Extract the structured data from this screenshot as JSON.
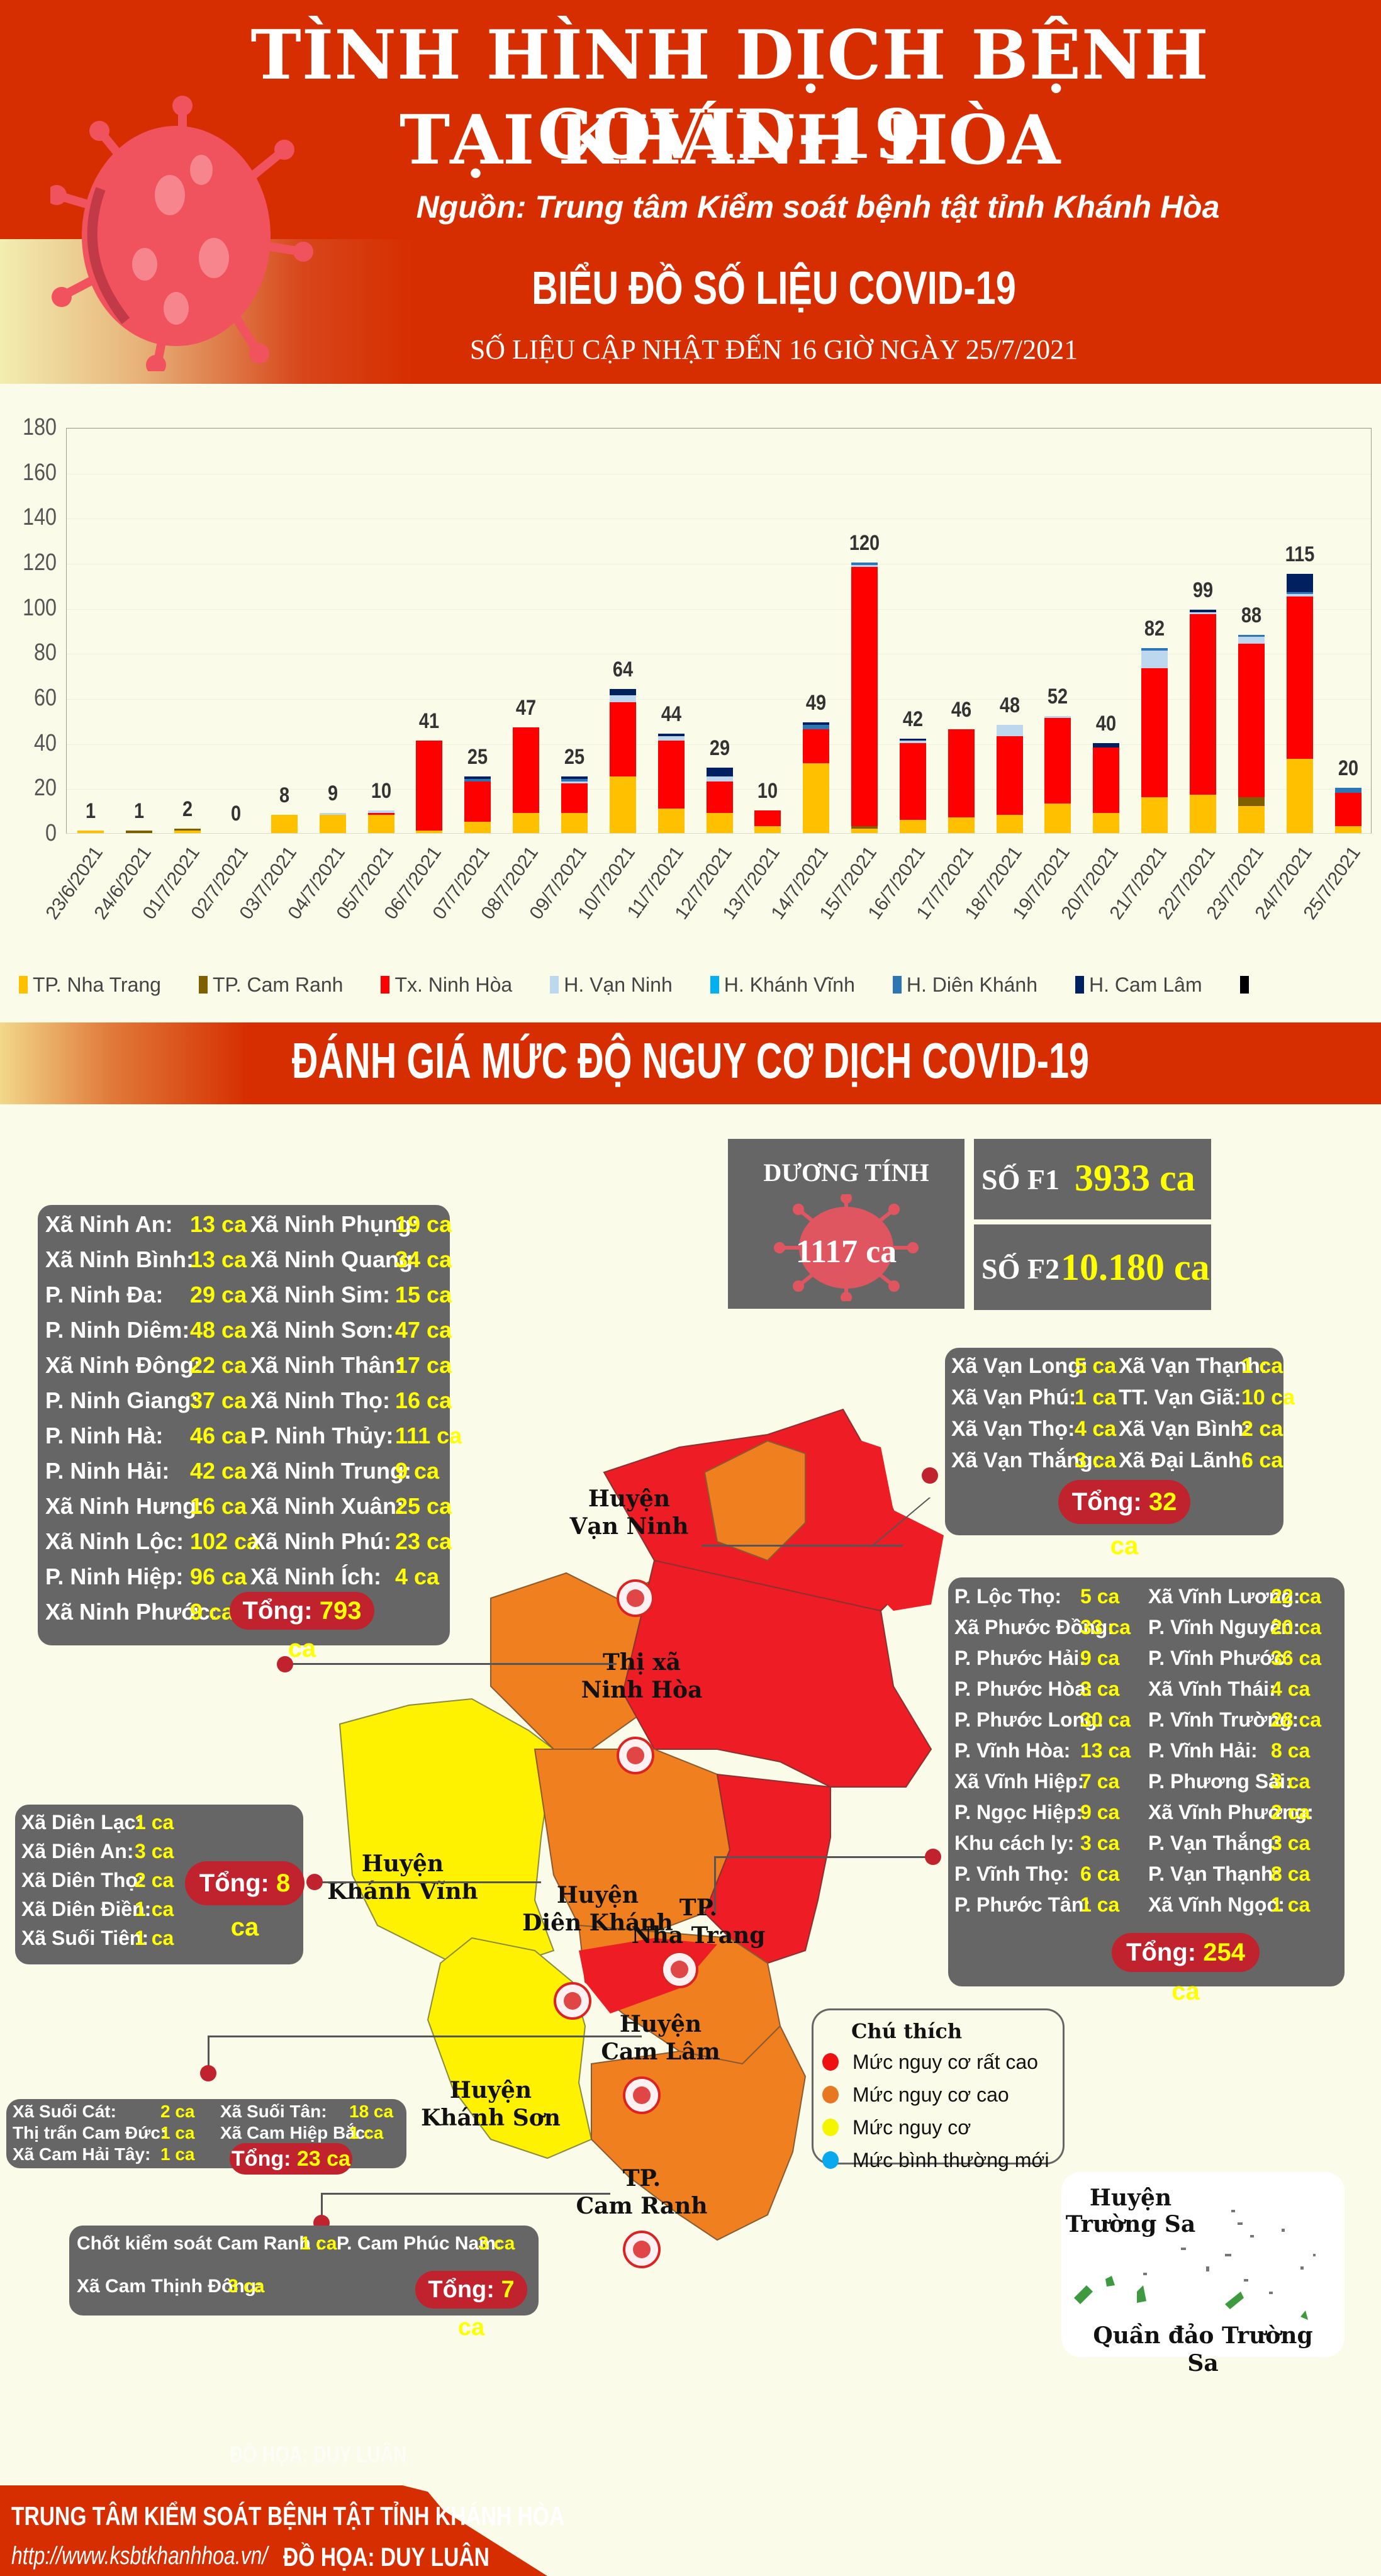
{
  "header": {
    "title_line1": "TÌNH HÌNH DỊCH BỆNH COVID-19",
    "title_line2": "TẠI KHÁNH HÒA",
    "source": "Nguồn: Trung tâm Kiểm soát bệnh tật tỉnh Khánh Hòa",
    "chart_title": "BIỂU ĐỒ SỐ LIỆU COVID-19",
    "update_note": "SỐ LIỆU CẬP NHẬT ĐẾN 16 GIỜ NGÀY 25/7/2021"
  },
  "colors": {
    "accent_red": "#d62e00",
    "box_gray": "#666666",
    "value_yellow": "#ffff00",
    "pill_red": "#c0232d"
  },
  "chart_data": {
    "type": "bar",
    "stacked": true,
    "title": "BIỂU ĐỒ SỐ LIỆU COVID-19",
    "xlabel": "",
    "ylabel": "",
    "ylim": [
      0,
      180
    ],
    "yticks": [
      0,
      20,
      40,
      60,
      80,
      100,
      120,
      140,
      160,
      180
    ],
    "grid": true,
    "legend_position": "bottom",
    "categories": [
      "23/6/2021",
      "24/6/2021",
      "01/7/2021",
      "02/7/2021",
      "03/7/2021",
      "04/7/2021",
      "05/7/2021",
      "06/7/2021",
      "07/7/2021",
      "08/7/2021",
      "09/7/2021",
      "10/7/2021",
      "11/7/2021",
      "12/7/2021",
      "13/7/2021",
      "14/7/2021",
      "15/7/2021",
      "16/7/2021",
      "17/7/2021",
      "18/7/2021",
      "19/7/2021",
      "20/7/2021",
      "21/7/2021",
      "22/7/2021",
      "23/7/2021",
      "24/7/2021",
      "25/7/2021"
    ],
    "totals": [
      1,
      1,
      2,
      0,
      8,
      9,
      10,
      41,
      25,
      47,
      25,
      64,
      44,
      29,
      10,
      49,
      120,
      42,
      46,
      48,
      52,
      40,
      82,
      99,
      88,
      115,
      20
    ],
    "series": [
      {
        "name": "TP. Nha Trang",
        "color": "#ffc000",
        "values": [
          1,
          0,
          1,
          0,
          8,
          8,
          8,
          1,
          5,
          9,
          9,
          25,
          11,
          9,
          3,
          31,
          2,
          6,
          7,
          8,
          13,
          9,
          16,
          17,
          12,
          33,
          3
        ]
      },
      {
        "name": "TP. Cam Ranh",
        "color": "#7f6000",
        "values": [
          0,
          1,
          1,
          0,
          0,
          0,
          0,
          0,
          0,
          0,
          0,
          0,
          0,
          0,
          0,
          0,
          1,
          0,
          0,
          0,
          0,
          0,
          0,
          0,
          4,
          0,
          0
        ]
      },
      {
        "name": "Tx. Ninh Hòa",
        "color": "#ff0000",
        "values": [
          0,
          0,
          0,
          0,
          0,
          0,
          1,
          40,
          18,
          38,
          13,
          33,
          30,
          14,
          7,
          15,
          115,
          34,
          39,
          35,
          38,
          29,
          57,
          80,
          68,
          72,
          15
        ]
      },
      {
        "name": "H. Vạn Ninh",
        "color": "#bdd7ee",
        "values": [
          0,
          0,
          0,
          0,
          0,
          1,
          1,
          0,
          0,
          0,
          1,
          3,
          2,
          2,
          0,
          0,
          1,
          1,
          0,
          5,
          1,
          0,
          8,
          1,
          3,
          1,
          0
        ]
      },
      {
        "name": "H. Khánh Vĩnh",
        "color": "#00b0f0",
        "values": [
          0,
          0,
          0,
          0,
          0,
          0,
          0,
          0,
          0,
          0,
          0,
          0,
          0,
          0,
          0,
          0,
          0,
          0,
          0,
          0,
          0,
          0,
          0,
          0,
          0,
          0,
          0
        ]
      },
      {
        "name": "H. Diên Khánh",
        "color": "#2e75b6",
        "values": [
          0,
          0,
          0,
          0,
          0,
          0,
          0,
          0,
          1,
          0,
          1,
          0,
          0,
          0,
          0,
          2,
          1,
          0,
          0,
          0,
          0,
          0,
          1,
          0,
          1,
          1,
          2
        ]
      },
      {
        "name": "H. Cam Lâm",
        "color": "#002060",
        "values": [
          0,
          0,
          0,
          0,
          0,
          0,
          0,
          0,
          1,
          0,
          1,
          3,
          1,
          4,
          0,
          1,
          0,
          1,
          0,
          0,
          0,
          2,
          0,
          1,
          0,
          8,
          0
        ]
      },
      {
        "name": "",
        "color": "#000000",
        "values": [
          0,
          0,
          0,
          0,
          0,
          0,
          0,
          0,
          0,
          0,
          0,
          0,
          0,
          0,
          0,
          0,
          0,
          0,
          0,
          0,
          0,
          0,
          0,
          0,
          0,
          0,
          0
        ]
      }
    ]
  },
  "section2": {
    "title": "ĐÁNH GIÁ MỨC ĐỘ NGUY CƠ DỊCH COVID-19",
    "positive": {
      "label": "DƯƠNG TÍNH",
      "value": "1117 ca"
    },
    "f1": {
      "label": "SỐ F1",
      "value": "3933 ca"
    },
    "f2": {
      "label": "SỐ F2",
      "value": "10.180 ca"
    }
  },
  "districts": {
    "ninh_hoa": {
      "left": [
        {
          "name": "Xã Ninh An:",
          "value": "13 ca"
        },
        {
          "name": "Xã Ninh Bình:",
          "value": "13 ca"
        },
        {
          "name": "P. Ninh Đa:",
          "value": "29 ca"
        },
        {
          "name": "P. Ninh Diêm:",
          "value": "48 ca"
        },
        {
          "name": "Xã Ninh Đông:",
          "value": "22 ca"
        },
        {
          "name": "P. Ninh Giang:",
          "value": "37 ca"
        },
        {
          "name": "P. Ninh Hà:",
          "value": "46 ca"
        },
        {
          "name": "P. Ninh Hải:",
          "value": "42 ca"
        },
        {
          "name": "Xã Ninh Hưng:",
          "value": "16 ca"
        },
        {
          "name": "Xã Ninh Lộc:",
          "value": "102 ca"
        },
        {
          "name": "P. Ninh Hiệp:",
          "value": "96 ca"
        },
        {
          "name": "Xã Ninh Phước:",
          "value": "9 ca"
        }
      ],
      "right": [
        {
          "name": "Xã Ninh Phụng:",
          "value": "19 ca"
        },
        {
          "name": "Xã Ninh Quang:",
          "value": "34 ca"
        },
        {
          "name": "Xã Ninh Sim:",
          "value": "15 ca"
        },
        {
          "name": "Xã Ninh Sơn:",
          "value": "47 ca"
        },
        {
          "name": "Xã Ninh Thân:",
          "value": "17 ca"
        },
        {
          "name": "Xã Ninh Thọ:",
          "value": "16 ca"
        },
        {
          "name": "P. Ninh Thủy:",
          "value": "111 ca"
        },
        {
          "name": "Xã Ninh Trung:",
          "value": "9 ca"
        },
        {
          "name": "Xã Ninh Xuân:",
          "value": "25 ca"
        },
        {
          "name": "Xã Ninh Phú:",
          "value": "23 ca"
        },
        {
          "name": "Xã Ninh Ích:",
          "value": "4 ca"
        }
      ],
      "total_label": "Tổng:",
      "total_value": "793 ca"
    },
    "van_ninh": {
      "left": [
        {
          "name": "Xã Vạn Long:",
          "value": "5 ca"
        },
        {
          "name": "Xã Vạn Phú:",
          "value": "1 ca"
        },
        {
          "name": "Xã Vạn Thọ:",
          "value": "4 ca"
        },
        {
          "name": "Xã Vạn Thắng:",
          "value": "3 ca"
        }
      ],
      "right": [
        {
          "name": "Xã Vạn Thạnh:",
          "value": "1 ca"
        },
        {
          "name": "TT. Vạn Giã:",
          "value": "10 ca"
        },
        {
          "name": "Xã Vạn Bình:",
          "value": "2 ca"
        },
        {
          "name": "Xã Đại Lãnh:",
          "value": "6 ca"
        }
      ],
      "total_label": "Tổng:",
      "total_value": "32 ca"
    },
    "nha_trang": {
      "left": [
        {
          "name": "P. Lộc Thọ:",
          "value": "5 ca"
        },
        {
          "name": "Xã Phước Đồng:",
          "value": "33 ca"
        },
        {
          "name": "P. Phước Hải:",
          "value": "9 ca"
        },
        {
          "name": "P. Phước Hòa:",
          "value": "3 ca"
        },
        {
          "name": "P. Phước Long:",
          "value": "30 ca"
        },
        {
          "name": "P. Vĩnh Hòa:",
          "value": "13 ca"
        },
        {
          "name": "Xã Vĩnh Hiệp:",
          "value": "7 ca"
        },
        {
          "name": "P. Ngọc Hiệp:",
          "value": "9 ca"
        },
        {
          "name": "Khu cách ly:",
          "value": "3 ca"
        },
        {
          "name": "P. Vĩnh Thọ:",
          "value": "6 ca"
        },
        {
          "name": "P. Phước Tân:",
          "value": "1 ca"
        }
      ],
      "right": [
        {
          "name": "Xã Vĩnh Lương:",
          "value": "22 ca"
        },
        {
          "name": "P. Vĩnh Nguyên:",
          "value": "20 ca"
        },
        {
          "name": "P. Vĩnh Phước:",
          "value": "36 ca"
        },
        {
          "name": "Xã Vĩnh Thái:",
          "value": "4 ca"
        },
        {
          "name": "P. Vĩnh Trường:",
          "value": "28 ca"
        },
        {
          "name": "P. Vĩnh Hải:",
          "value": "8 ca"
        },
        {
          "name": "P. Phương Sài:",
          "value": "3 ca"
        },
        {
          "name": "Xã Vĩnh Phương:",
          "value": "2 ca"
        },
        {
          "name": "P. Vạn Thắng:",
          "value": "3 ca"
        },
        {
          "name": "P. Vạn Thạnh:",
          "value": "8 ca"
        },
        {
          "name": "Xã Vĩnh Ngọc:",
          "value": "1 ca"
        }
      ],
      "total_label": "Tổng:",
      "total_value": "254 ca"
    },
    "dien_khanh": {
      "left": [
        {
          "name": "Xã Diên Lạc:",
          "value": "1 ca"
        },
        {
          "name": "Xã Diên An:",
          "value": "3 ca"
        },
        {
          "name": "Xã Diên Thọ:",
          "value": "2 ca"
        },
        {
          "name": "Xã Diên Điền:",
          "value": "1 ca"
        },
        {
          "name": "Xã Suối Tiên:",
          "value": "1 ca"
        }
      ],
      "total_label": "Tổng:",
      "total_value": "8 ca"
    },
    "cam_lam": {
      "left": [
        {
          "name": "Xã Suối Cát:",
          "value": "2 ca"
        },
        {
          "name": "Thị trấn Cam Đức:",
          "value": "1 ca"
        },
        {
          "name": "Xã Cam Hải Tây:",
          "value": "1 ca"
        }
      ],
      "right": [
        {
          "name": "Xã Suối Tân:",
          "value": "18 ca"
        },
        {
          "name": "Xã Cam Hiệp Bắc:",
          "value": "1 ca"
        }
      ],
      "total_label": "Tổng:",
      "total_value": "23 ca"
    },
    "cam_ranh": {
      "items": [
        {
          "name": "Chốt kiểm soát Cam Ranh :",
          "value": "1 ca"
        },
        {
          "name": "P. Cam Phúc Nam:",
          "value": "3 ca"
        },
        {
          "name": "Xã Cam Thịnh Đông:",
          "value": "3 ca"
        }
      ],
      "total_label": "Tổng:",
      "total_value": "7 ca"
    }
  },
  "map": {
    "labels": {
      "van_ninh": [
        "Huyện",
        "Vạn Ninh"
      ],
      "ninh_hoa": [
        "Thị xã",
        "Ninh Hòa"
      ],
      "khanh_vinh": [
        "Huyện",
        "Khánh Vĩnh"
      ],
      "dien_khanh": [
        "Huyện",
        "Diên Khánh"
      ],
      "nha_trang": [
        "TP.",
        "Nha Trang"
      ],
      "cam_lam": [
        "Huyện",
        "Cam Lâm"
      ],
      "khanh_son": [
        "Huyện",
        "Khánh Sơn"
      ],
      "cam_ranh": [
        "TP.",
        "Cam Ranh"
      ]
    },
    "legend": {
      "title": "Chú thích",
      "items": [
        {
          "label": "Mức nguy cơ rất cao",
          "color": "#ee1111"
        },
        {
          "label": "Mức nguy cơ cao",
          "color": "#e87722"
        },
        {
          "label": "Mức nguy cơ",
          "color": "#f5f500"
        },
        {
          "label": "Mức bình thường mới",
          "color": "#0aa8ee"
        }
      ]
    },
    "truong_sa": {
      "title": [
        "Huyện",
        "Trường Sa"
      ],
      "caption": "Quần đảo Trường Sa"
    }
  },
  "footer": {
    "org": "TRUNG TÂM KIỂM SOÁT BỆNH TẬT TỈNH KHÁNH HÒA",
    "url": "http://www.ksbtkhanhhoa.vn/",
    "credit": "ĐỒ HỌA: DUY LUÂN",
    "watermark": "ĐỒ HỌA: DUY LUÂN"
  }
}
